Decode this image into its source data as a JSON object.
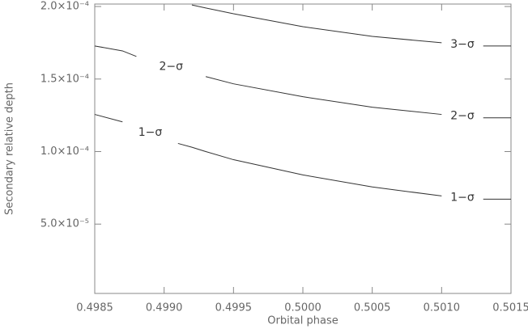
{
  "chart_data": {
    "type": "line",
    "x_label": "Orbital phase",
    "y_label": "Secondary relative depth",
    "x": [
      0.4985,
      0.4987,
      0.4988,
      0.4989,
      0.499,
      0.4991,
      0.4992,
      0.4993,
      0.4995,
      0.5,
      0.5005,
      0.501,
      0.5012,
      0.5013,
      0.5015
    ],
    "series": [
      {
        "name": "1−σ",
        "color": "#333333",
        "values": [
          0.0001256,
          0.0001205,
          null,
          null,
          null,
          0.0001056,
          0.000103,
          0.0001,
          9.44e-05,
          8.39e-05,
          7.56e-05,
          6.94e-05,
          null,
          6.72e-05,
          6.72e-05
        ]
      },
      {
        "name": "2−σ",
        "color": "#333333",
        "values": [
          0.0001728,
          0.0001694,
          0.0001656,
          null,
          null,
          null,
          null,
          0.0001517,
          0.0001467,
          0.0001378,
          0.0001306,
          0.0001256,
          null,
          0.0001233,
          0.0001233
        ]
      },
      {
        "name": "3−σ",
        "color": "#333333",
        "values": [
          null,
          null,
          null,
          null,
          null,
          null,
          0.0002011,
          0.000199,
          0.000195,
          0.0001861,
          0.0001794,
          0.000175,
          null,
          0.0001728,
          0.0001728
        ]
      }
    ],
    "xlim": [
      0.4985,
      0.5015
    ],
    "ylim": [
      2.2e-06,
      0.0002017
    ],
    "xticks": [
      {
        "value": 0.4985,
        "label": "0.4985"
      },
      {
        "value": 0.499,
        "label": "0.4990"
      },
      {
        "value": 0.4995,
        "label": "0.4995"
      },
      {
        "value": 0.5,
        "label": "0.5000"
      },
      {
        "value": 0.5005,
        "label": "0.5005"
      },
      {
        "value": 0.501,
        "label": "0.5010"
      },
      {
        "value": 0.5015,
        "label": "0.5015"
      }
    ],
    "yticks": [
      {
        "value": 5e-05,
        "label": "5.0×10⁻⁵"
      },
      {
        "value": 0.0001,
        "label": "1.0×10⁻⁴"
      },
      {
        "value": 0.00015,
        "label": "1.5×10⁻⁴"
      },
      {
        "value": 0.0002,
        "label": "2.0×10⁻⁴"
      }
    ],
    "grid": false
  }
}
